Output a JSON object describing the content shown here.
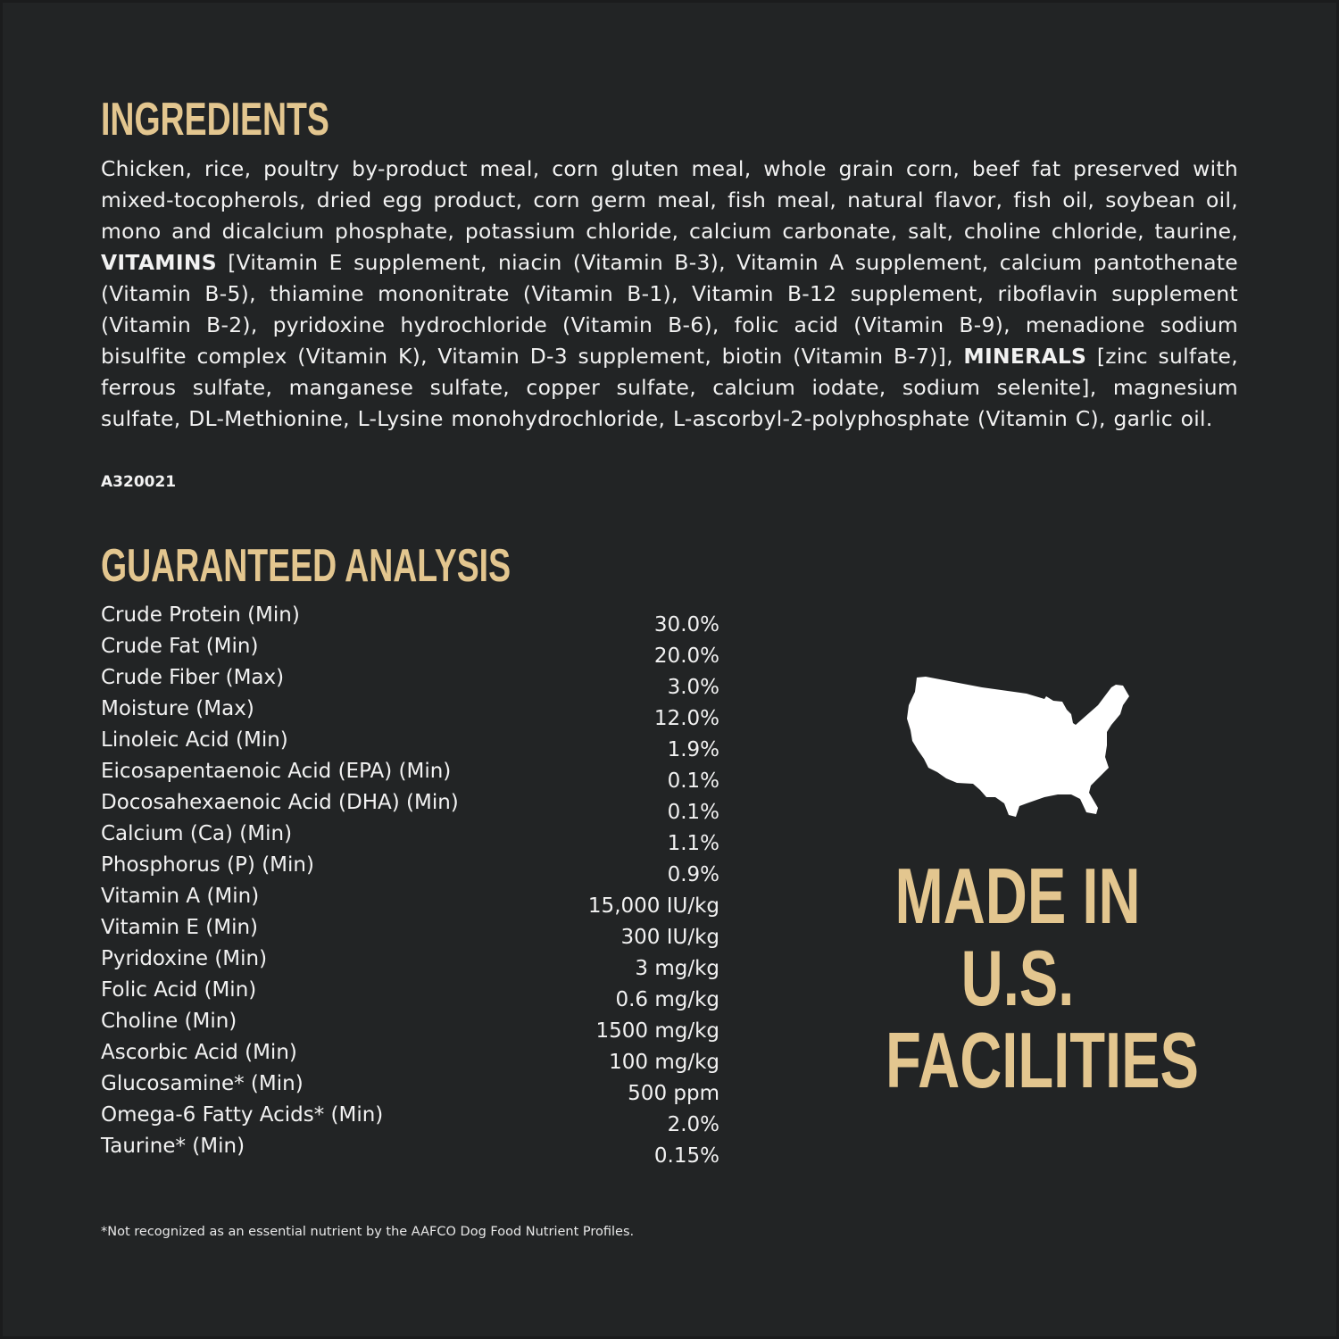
{
  "ingredients": {
    "title": "INGREDIENTS",
    "text_1": "Chicken, rice, poultry by-product meal, corn gluten meal, whole grain corn, beef fat preserved with mixed-tocopherols, dried egg product, corn germ meal, fish meal, natural flavor, fish oil, soybean oil, mono and dicalcium phosphate, potassium chloride, calcium carbonate, salt, choline chloride, taurine, ",
    "bold_1": "VITAMINS",
    "text_2": " [Vitamin E supplement, niacin (Vitamin B-3), Vitamin A supplement, calcium pantothenate (Vitamin B-5), thiamine mononitrate (Vitamin B-1), Vitamin B-12 supplement, riboflavin supplement (Vitamin B-2), pyridoxine hydrochloride (Vitamin B-6), folic acid (Vitamin B-9), menadione sodium bisulfite complex (Vitamin K), Vitamin D-3 supplement, biotin (Vitamin B-7)], ",
    "bold_2": "MINERALS",
    "text_3": " [zinc sulfate, ferrous sulfate, manganese sulfate, copper sulfate, calcium iodate, sodium selenite], magnesium sulfate, DL-Methionine, L-Lysine monohydrochloride, L-ascorbyl-2-polyphosphate (Vitamin C), garlic oil.",
    "code": "A320021"
  },
  "analysis": {
    "title": "GUARANTEED ANALYSIS",
    "rows": [
      {
        "label": "Crude Protein (Min)",
        "value": "30.0%"
      },
      {
        "label": "Crude Fat (Min)",
        "value": "20.0%"
      },
      {
        "label": "Crude Fiber (Max)",
        "value": "3.0%"
      },
      {
        "label": "Moisture (Max)",
        "value": "12.0%"
      },
      {
        "label": "Linoleic Acid (Min)",
        "value": "1.9%"
      },
      {
        "label": "Eicosapentaenoic Acid (EPA) (Min)",
        "value": "0.1%"
      },
      {
        "label": "Docosahexaenoic Acid (DHA) (Min)",
        "value": "0.1%"
      },
      {
        "label": "Calcium (Ca) (Min)",
        "value": "1.1%"
      },
      {
        "label": "Phosphorus (P) (Min)",
        "value": "0.9%"
      },
      {
        "label": "Vitamin A (Min)",
        "value": "15,000 IU/kg"
      },
      {
        "label": "Vitamin E (Min)",
        "value": "300 IU/kg"
      },
      {
        "label": "Pyridoxine (Min)",
        "value": "3 mg/kg"
      },
      {
        "label": "Folic Acid (Min)",
        "value": "0.6 mg/kg"
      },
      {
        "label": "Choline (Min)",
        "value": "1500 mg/kg"
      },
      {
        "label": "Ascorbic Acid (Min)",
        "value": "100 mg/kg"
      },
      {
        "label": "Glucosamine* (Min)",
        "value": "500 ppm"
      },
      {
        "label": "Omega-6 Fatty Acids* (Min)",
        "value": "2.0%"
      },
      {
        "label": "Taurine* (Min)",
        "value": "0.15%"
      }
    ],
    "footnote": "*Not recognized as an essential nutrient by the AAFCO Dog Food Nutrient Profiles."
  },
  "badge": {
    "icon": "usa-map-icon",
    "lines": [
      "MADE IN",
      "U.S.",
      "FACILITIES"
    ]
  },
  "colors": {
    "background": "#222425",
    "accent": "#e3c68f",
    "text": "#f2f2f2"
  }
}
